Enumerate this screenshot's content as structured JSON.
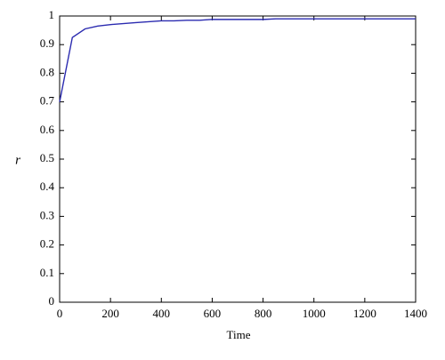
{
  "chart_data": {
    "type": "line",
    "x_label": "Time",
    "y_label": "r",
    "x": [
      0,
      50,
      100,
      150,
      200,
      300,
      400,
      450,
      500,
      550,
      600,
      700,
      800,
      850,
      900,
      1000,
      1100,
      1200,
      1300,
      1400
    ],
    "series": [
      {
        "color": "#2b2bb0",
        "values": [
          0.7,
          0.925,
          0.955,
          0.965,
          0.97,
          0.977,
          0.983,
          0.983,
          0.985,
          0.985,
          0.988,
          0.988,
          0.988,
          0.99,
          0.99,
          0.99,
          0.99,
          0.99,
          0.99,
          0.99
        ]
      }
    ],
    "xlim": [
      0,
      1400
    ],
    "xticks": [
      0,
      200,
      400,
      600,
      800,
      1000,
      1200,
      1400
    ],
    "ylim": [
      0,
      1
    ],
    "yticks": [
      0,
      0.1,
      0.2,
      0.3,
      0.4,
      0.5,
      0.6,
      0.7,
      0.8,
      0.9,
      1
    ],
    "grid": false
  }
}
